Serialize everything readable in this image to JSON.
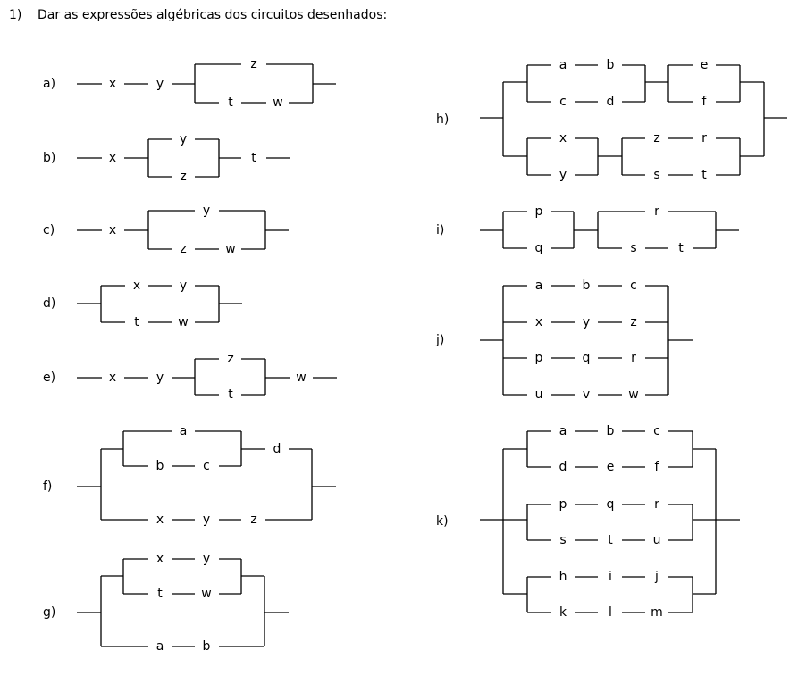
{
  "header": {
    "number": "1)",
    "instruction": "Dar as expressões algébricas dos circuitos desenhados:"
  },
  "circuits": {
    "a": {
      "label": "a)",
      "vars": [
        "x",
        "y",
        "z",
        "t",
        "w"
      ]
    },
    "b": {
      "label": "b)",
      "vars": [
        "x",
        "y",
        "z",
        "t"
      ]
    },
    "c": {
      "label": "c)",
      "vars": [
        "x",
        "y",
        "z",
        "w"
      ]
    },
    "d": {
      "label": "d)",
      "vars": [
        "x",
        "y",
        "t",
        "w"
      ]
    },
    "e": {
      "label": "e)",
      "vars": [
        "x",
        "y",
        "z",
        "t",
        "w"
      ]
    },
    "f": {
      "label": "f)",
      "vars": [
        "a",
        "b",
        "c",
        "d",
        "x",
        "y",
        "z"
      ]
    },
    "g": {
      "label": "g)",
      "vars": [
        "x",
        "y",
        "t",
        "w",
        "a",
        "b"
      ]
    },
    "h": {
      "label": "h)",
      "vars": [
        "a",
        "b",
        "c",
        "d",
        "e",
        "f",
        "x",
        "y",
        "z",
        "r",
        "s",
        "t"
      ]
    },
    "i": {
      "label": "i)",
      "vars": [
        "p",
        "q",
        "r",
        "s",
        "t"
      ]
    },
    "j": {
      "label": "j)",
      "vars": [
        "a",
        "b",
        "c",
        "x",
        "y",
        "z",
        "p",
        "q",
        "r",
        "u",
        "v",
        "w"
      ]
    },
    "k": {
      "label": "k)",
      "vars": [
        "a",
        "b",
        "c",
        "d",
        "e",
        "f",
        "p",
        "q",
        "r",
        "s",
        "t",
        "u",
        "h",
        "i",
        "j",
        "k",
        "l",
        "m"
      ]
    }
  }
}
